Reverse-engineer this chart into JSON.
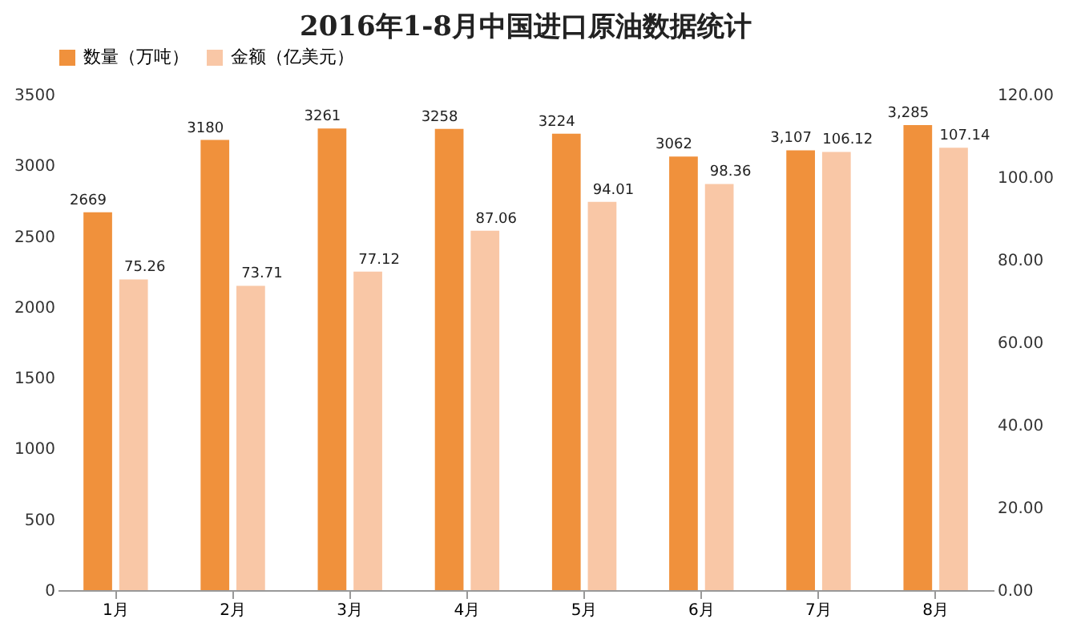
{
  "chart_data": {
    "type": "bar",
    "title": "2016年1-8月中国进口原油数据统计",
    "categories": [
      "1月",
      "2月",
      "3月",
      "4月",
      "5月",
      "6月",
      "7月",
      "8月"
    ],
    "series": [
      {
        "name": "数量（万吨）",
        "color": "#f0913c",
        "values": [
          2669,
          3180,
          3261,
          3258,
          3224,
          3062,
          3107,
          3285
        ],
        "value_labels": [
          "2669",
          "3180",
          "3261",
          "3258",
          "3224",
          "3062",
          "3,107",
          "3,285"
        ]
      },
      {
        "name": "金额（亿美元）",
        "color": "#f9c7a6",
        "axis": "y2",
        "values": [
          75.26,
          73.71,
          77.12,
          87.06,
          94.01,
          98.36,
          106.12,
          107.14
        ]
      }
    ],
    "data_labels": true,
    "ylim": [
      0,
      3500
    ],
    "yticks": [
      0,
      500,
      1000,
      1500,
      2000,
      2500,
      3000,
      3500
    ],
    "y2lim": [
      0,
      120
    ],
    "y2ticks": [
      {
        "value": 0,
        "label": "0.00"
      },
      {
        "value": 20,
        "label": "20.00"
      },
      {
        "value": 40,
        "label": "40.00"
      },
      {
        "value": 60,
        "label": "60.00"
      },
      {
        "value": 80,
        "label": "80.00"
      },
      {
        "value": 100,
        "label": "100.00"
      },
      {
        "value": 120,
        "label": "120.00"
      }
    ],
    "legend": "top",
    "grid": false
  }
}
